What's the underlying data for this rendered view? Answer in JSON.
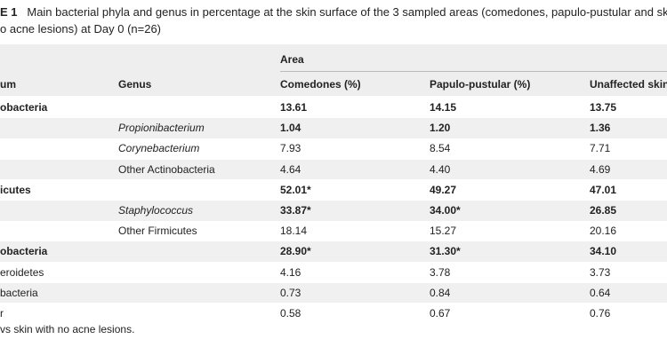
{
  "caption": {
    "line1_label": "E 1",
    "line1_text": "Main bacterial phyla and genus in percentage at the skin surface of the 3 sampled areas (comedones, papulo-pustular and sk",
    "line2_text": "o acne lesions) at Day 0 (n=26)"
  },
  "table": {
    "group_header": "Area",
    "headers": [
      "um",
      "Genus",
      "Comedones (%)",
      "Papulo-pustular (%)",
      "Unaffected skin"
    ],
    "rows": [
      [
        "obacteria",
        "",
        "13.61",
        "14.15",
        "13.75"
      ],
      [
        "",
        "Propionibacterium",
        "1.04",
        "1.20",
        "1.36"
      ],
      [
        "",
        "Corynebacterium",
        "7.93",
        "8.54",
        "7.71"
      ],
      [
        "",
        "Other Actinobacteria",
        "4.64",
        "4.40",
        "4.69"
      ],
      [
        "icutes",
        "",
        "52.01*",
        "49.27",
        "47.01"
      ],
      [
        "",
        "Staphylococcus",
        "33.87*",
        "34.00*",
        "26.85"
      ],
      [
        "",
        "Other Firmicutes",
        "18.14",
        "15.27",
        "20.16"
      ],
      [
        "obacteria",
        "",
        "28.90*",
        "31.30*",
        "34.10"
      ],
      [
        "eroidetes",
        "",
        "4.16",
        "3.78",
        "3.73"
      ],
      [
        "bacteria",
        "",
        "0.73",
        "0.84",
        "0.64"
      ],
      [
        "r",
        "",
        "0.58",
        "0.67",
        "0.76"
      ]
    ]
  },
  "footnote": "vs skin with no acne lesions."
}
